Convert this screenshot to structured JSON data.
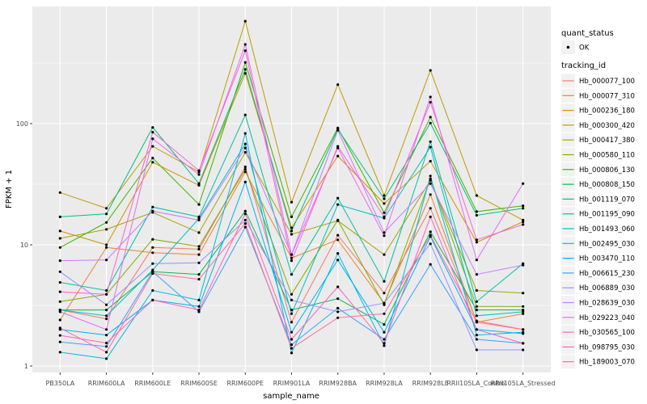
{
  "chart_data": {
    "type": "line",
    "title": "",
    "xlabel": "sample_name",
    "ylabel": "FPKM + 1",
    "y_scale": "log10",
    "y_major_ticks": [
      1,
      10,
      100
    ],
    "y_minor_ticks": [
      3.162,
      31.62,
      316.2
    ],
    "ylim_log": [
      -0.08,
      2.99
    ],
    "grid": true,
    "legend_position": "right",
    "x_categories": [
      "PB350LA",
      "RRIM600LA",
      "RRIM600LE",
      "RRIM600SE",
      "RRIM600PE",
      "RRIM901LA",
      "RRIM928BA",
      "RRIM928LA",
      "RRIM928LE",
      "RRII105LA_Control",
      "RRII105LA_Stressed"
    ],
    "series": [
      {
        "name": "Hb_000077_100",
        "color": "#F8766D",
        "values": [
          2.9,
          2.45,
          9.5,
          9.2,
          44,
          2.3,
          12,
          4.0,
          20,
          2.36,
          2.0
        ]
      },
      {
        "name": "Hb_000077_310",
        "color": "#EA8331",
        "values": [
          2.4,
          9.5,
          8.6,
          8.3,
          40,
          7.8,
          11,
          3.3,
          26,
          2.3,
          2.7
        ]
      },
      {
        "name": "Hb_000236_180",
        "color": "#D89000",
        "values": [
          13,
          10,
          48,
          31,
          260,
          13.8,
          54,
          21.9,
          49,
          10.5,
          15.5
        ]
      },
      {
        "name": "Hb_000300_420",
        "color": "#C09B00",
        "values": [
          27,
          20,
          65,
          40,
          700,
          22.5,
          210,
          25.5,
          275,
          25.5,
          16
        ]
      },
      {
        "name": "Hb_000417_380",
        "color": "#A3A500",
        "values": [
          11.3,
          13.4,
          18.5,
          12.6,
          58,
          12.2,
          15.8,
          8.3,
          34,
          4.2,
          4.0
        ]
      },
      {
        "name": "Hb_000580_110",
        "color": "#7CAE00",
        "values": [
          3.4,
          3.9,
          11.1,
          9.7,
          42,
          3.9,
          16,
          3.2,
          35,
          3.1,
          3.1
        ]
      },
      {
        "name": "Hb_000806_130",
        "color": "#39B600",
        "values": [
          9.5,
          15.3,
          52,
          21.5,
          320,
          17,
          92,
          18.4,
          113,
          18.8,
          21
        ]
      },
      {
        "name": "Hb_000808_150",
        "color": "#00BB4E",
        "values": [
          2.9,
          2.9,
          6.0,
          5.7,
          19,
          2.9,
          3.6,
          2.2,
          12.8,
          2.9,
          2.9
        ]
      },
      {
        "name": "Hb_001119_070",
        "color": "#00BF7D",
        "values": [
          17,
          18,
          93,
          32,
          280,
          13,
          90,
          24,
          101,
          17.5,
          20
        ]
      },
      {
        "name": "Hb_001195_090",
        "color": "#00C1A3",
        "values": [
          4.9,
          4.2,
          20.5,
          17,
          118,
          5.7,
          24.3,
          5.0,
          71,
          3.4,
          7.0
        ]
      },
      {
        "name": "Hb_001493_060",
        "color": "#00BFC4",
        "values": [
          2.9,
          2.6,
          6.2,
          16.5,
          68,
          2.7,
          21.5,
          16.6,
          64,
          2.6,
          2.8
        ]
      },
      {
        "name": "Hb_002495_030",
        "color": "#00BAE0",
        "values": [
          1.3,
          1.15,
          4.2,
          3.5,
          83,
          1.28,
          8.5,
          1.47,
          37,
          1.8,
          1.9
        ]
      },
      {
        "name": "Hb_003470_110",
        "color": "#00B0F6",
        "values": [
          2.0,
          1.8,
          3.5,
          3.1,
          33,
          1.9,
          7.5,
          1.9,
          11.7,
          2.0,
          1.85
        ]
      },
      {
        "name": "Hb_006615_230",
        "color": "#35A2FF",
        "values": [
          1.58,
          1.45,
          6.0,
          2.8,
          14,
          1.5,
          3.0,
          1.66,
          6.9,
          1.66,
          1.54
        ]
      },
      {
        "name": "Hb_006889_030",
        "color": "#9590FF",
        "values": [
          6.0,
          3.2,
          7.0,
          7.1,
          16,
          3.5,
          2.8,
          3.3,
          10.2,
          1.36,
          1.36
        ]
      },
      {
        "name": "Hb_028639_030",
        "color": "#C77CFF",
        "values": [
          7.4,
          7.5,
          19,
          16,
          63,
          8.3,
          88,
          12.6,
          32,
          5.7,
          6.8
        ]
      },
      {
        "name": "Hb_029223_040",
        "color": "#E76BF3",
        "values": [
          2.8,
          2.0,
          75,
          38,
          450,
          8.3,
          63,
          11.9,
          166,
          7.5,
          32
        ]
      },
      {
        "name": "Hb_030565_100",
        "color": "#FA62DB",
        "values": [
          4.1,
          3.9,
          85,
          41,
          400,
          7.4,
          65,
          17,
          150,
          11.0,
          14.7
        ]
      },
      {
        "name": "Hb_098795_030",
        "color": "#FF62BC",
        "values": [
          1.79,
          1.55,
          3.5,
          2.9,
          18,
          1.66,
          4.5,
          1.54,
          17,
          2.0,
          1.54
        ]
      },
      {
        "name": "Hb_189003_070",
        "color": "#FF6A98",
        "values": [
          2.06,
          1.3,
          5.8,
          5.2,
          15,
          1.4,
          2.5,
          2.7,
          12,
          2.3,
          2.0
        ]
      }
    ]
  },
  "legend": {
    "quant_status": {
      "title": "quant_status",
      "items": [
        {
          "label": "OK",
          "symbol": "black-point"
        }
      ]
    },
    "tracking_id": {
      "title": "tracking_id"
    }
  },
  "style": {
    "panel_bg": "#EBEBEB",
    "grid_color": "#FFFFFF",
    "tick_color": "#333333",
    "tick_label_color": "#4D4D4D",
    "axis_title_color": "#000000",
    "legend_key_bg": "#F2F2F2",
    "legend_text_color": "#000000",
    "point_color": "#000000",
    "background": "#FFFFFF"
  }
}
